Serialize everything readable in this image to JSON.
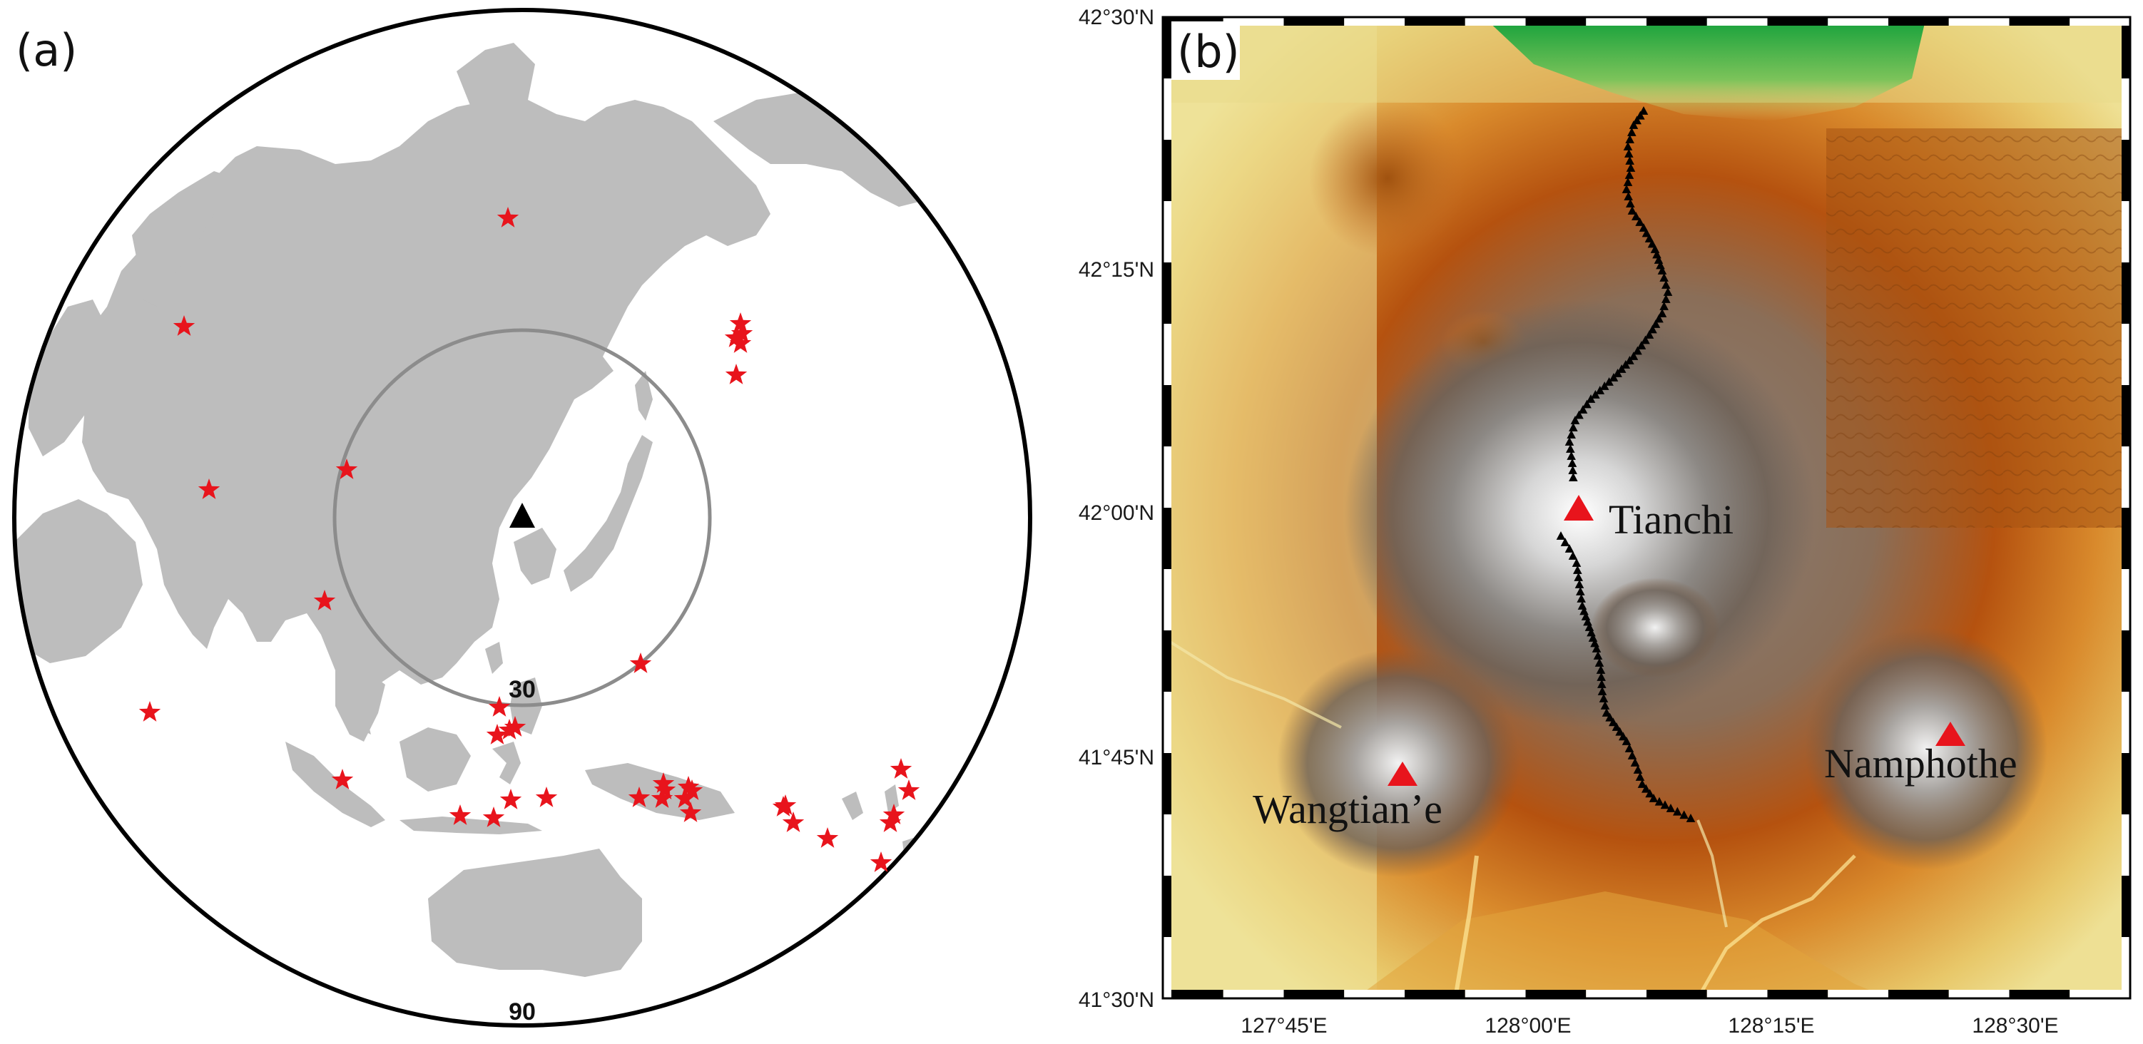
{
  "panel_a": {
    "label": "(a)",
    "inner_ring_label": "30",
    "outer_ring_label": "90",
    "station_marker": "black-triangle",
    "event_marker": "red-star",
    "land_color": "#bdbdbd",
    "event_color": "#e8141c",
    "event_count": 38
  },
  "panel_b": {
    "label": "(b)",
    "y_ticks": [
      "42°30'N",
      "42°15'N",
      "42°00'N",
      "41°45'N",
      "41°30'N"
    ],
    "x_ticks": [
      "127°45'E",
      "128°00'E",
      "128°15'E",
      "128°30'E"
    ],
    "volcanoes": [
      {
        "name": "Tianchi"
      },
      {
        "name": "Wangtian’e"
      },
      {
        "name": "Namphothe"
      }
    ],
    "volcano_color": "#e8141c",
    "station_color": "#000000",
    "elevation_colors": [
      "#1aa33a",
      "#e8d98a",
      "#d9802a",
      "#b3520f",
      "#6e6258",
      "#ffffff"
    ]
  }
}
